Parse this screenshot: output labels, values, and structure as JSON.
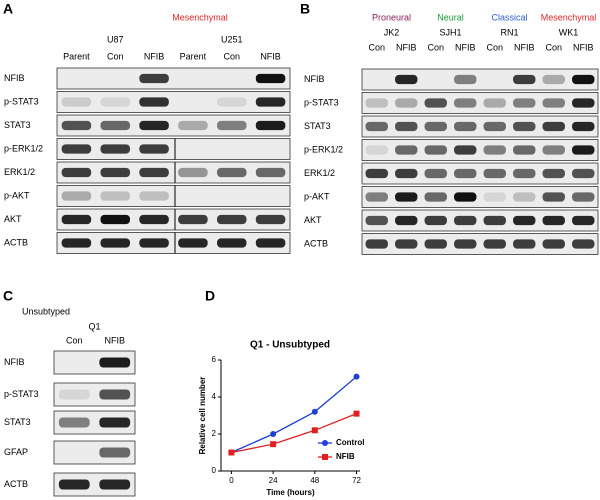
{
  "panels": {
    "A": {
      "letter": "A",
      "group_label": "Mesenchymal",
      "cell_lines": [
        "U87",
        "U251"
      ],
      "lanes": [
        "Parent",
        "Con",
        "NFIB",
        "Parent",
        "Con",
        "NFIB"
      ],
      "rows": [
        "NFIB",
        "p-STAT3",
        "STAT3",
        "p-ERK1/2",
        "ERK1/2",
        "p-AKT",
        "AKT",
        "ACTB"
      ]
    },
    "B": {
      "letter": "B",
      "subtypes": [
        {
          "name": "Proneural",
          "color": "#8b1a5c"
        },
        {
          "name": "Neural",
          "color": "#1a9a3a"
        },
        {
          "name": "Classical",
          "color": "#2a5bc8"
        },
        {
          "name": "Mesenchymal",
          "color": "#e0262a"
        }
      ],
      "cell_lines": [
        "JK2",
        "SJH1",
        "RN1",
        "WK1"
      ],
      "lanes": [
        "Con",
        "NFIB",
        "Con",
        "NFIB",
        "Con",
        "NFIB",
        "Con",
        "NFIB"
      ],
      "rows": [
        "NFIB",
        "p-STAT3",
        "STAT3",
        "p-ERK1/2",
        "ERK1/2",
        "p-AKT",
        "AKT",
        "ACTB"
      ]
    },
    "C": {
      "letter": "C",
      "subtype": "Unsubtyped",
      "cell_line": "Q1",
      "lanes": [
        "Con",
        "NFIB"
      ],
      "rows": [
        "NFIB",
        "p-STAT3",
        "STAT3",
        "GFAP",
        "ACTB"
      ]
    },
    "D": {
      "letter": "D"
    }
  },
  "chart_data": {
    "type": "line",
    "title": "Q1 - Unsubtyped",
    "x_label": "Time (hours)",
    "y_label": "Relative cell number",
    "x": [
      0,
      24,
      48,
      72
    ],
    "series": [
      {
        "name": "Control",
        "color": "#1f3fd6",
        "marker": "circle",
        "values": [
          1,
          2,
          3.2,
          5.1
        ]
      },
      {
        "name": "NFIB",
        "color": "#e02020",
        "marker": "square",
        "values": [
          1,
          1.45,
          2.2,
          3.1
        ]
      }
    ],
    "xlim": [
      -6,
      74
    ],
    "ylim": [
      0,
      6
    ],
    "xticks": [
      0,
      24,
      48,
      72
    ],
    "yticks": [
      0,
      2,
      4,
      6
    ],
    "legend": "lower right"
  }
}
